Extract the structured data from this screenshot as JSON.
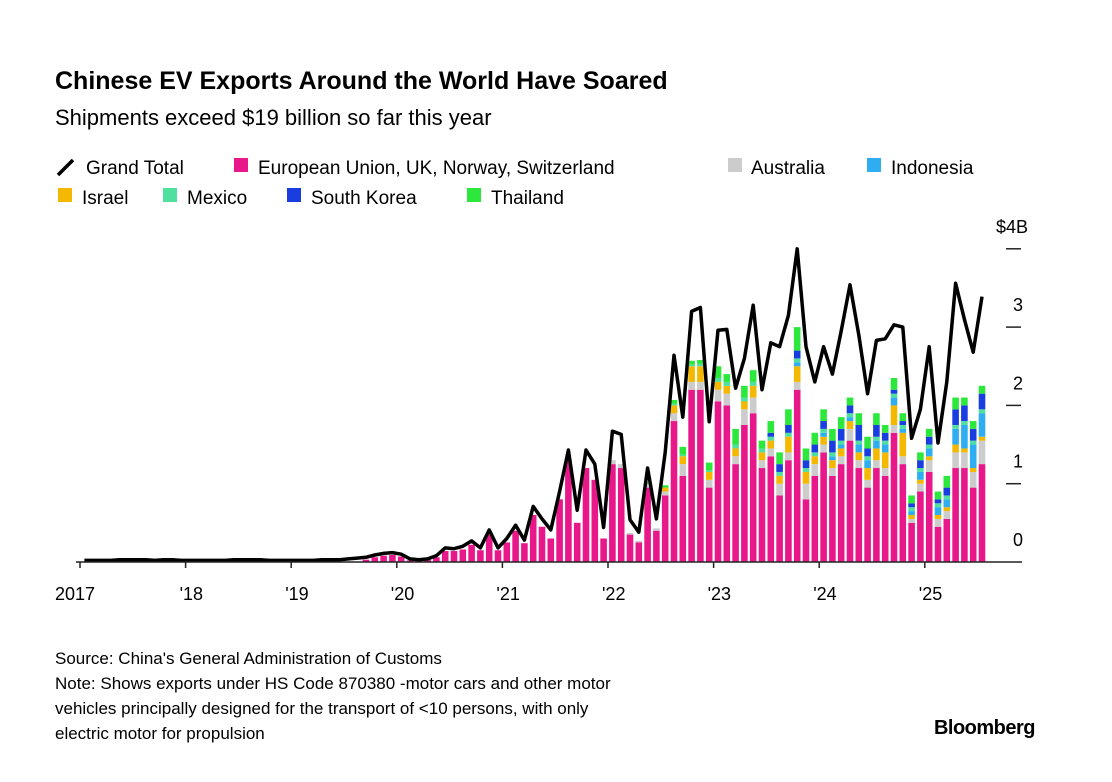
{
  "chart_data": {
    "type": "bar",
    "title": "Chinese EV Exports Around the World Have Soared",
    "subtitle": "Shipments exceed $19 billion so far this year",
    "ylabel": "$ billions",
    "ylim": [
      0,
      4
    ],
    "y_ticks": [
      "0",
      "1",
      "2",
      "3",
      "$4B"
    ],
    "x_ticks": [
      "2017",
      "'18",
      "'19",
      "'20",
      "'21",
      "'22",
      "'23",
      "'24",
      "'25"
    ],
    "x_tick_labels_positions_year": [
      2017,
      2018,
      2019,
      2020,
      2021,
      2022,
      2023,
      2024,
      2025
    ],
    "x_start": "2017-01",
    "frequency": "monthly",
    "legend": [
      "Grand Total",
      "European Union, UK, Norway, Switzerland",
      "Australia",
      "Indonesia",
      "Israel",
      "Mexico",
      "South Korea",
      "Thailand"
    ],
    "legend_placement": "top",
    "grand_total": [
      0.02,
      0.02,
      0.02,
      0.02,
      0.03,
      0.03,
      0.03,
      0.03,
      0.02,
      0.03,
      0.03,
      0.02,
      0.02,
      0.02,
      0.02,
      0.02,
      0.02,
      0.03,
      0.03,
      0.03,
      0.03,
      0.02,
      0.02,
      0.02,
      0.02,
      0.02,
      0.02,
      0.03,
      0.03,
      0.03,
      0.04,
      0.05,
      0.06,
      0.09,
      0.11,
      0.12,
      0.1,
      0.04,
      0.03,
      0.04,
      0.08,
      0.18,
      0.17,
      0.2,
      0.27,
      0.18,
      0.41,
      0.18,
      0.3,
      0.47,
      0.28,
      0.71,
      0.55,
      0.41,
      0.9,
      1.43,
      0.66,
      1.43,
      1.25,
      0.44,
      1.67,
      1.63,
      0.54,
      0.38,
      1.2,
      0.55,
      1.4,
      2.64,
      1.85,
      3.2,
      3.25,
      1.79,
      2.96,
      2.97,
      2.22,
      2.6,
      3.28,
      2.2,
      2.8,
      2.75,
      3.15,
      4.0,
      2.75,
      2.3,
      2.75,
      2.4,
      2.95,
      3.54,
      2.9,
      2.15,
      2.83,
      2.85,
      3.03,
      3.0,
      1.58,
      1.95,
      2.75,
      1.52,
      2.3,
      3.56,
      3.1,
      2.68,
      3.39
    ],
    "stack_start": "2017-01",
    "series": [
      {
        "name": "European Union, UK, Norway, Switzerland",
        "color": "#e8188a",
        "offset_months": 0,
        "values": [
          0,
          0,
          0,
          0,
          0,
          0,
          0,
          0,
          0,
          0,
          0,
          0,
          0,
          0,
          0,
          0,
          0,
          0,
          0,
          0,
          0,
          0,
          0,
          0,
          0,
          0,
          0,
          0,
          0,
          0,
          0,
          0,
          0.03,
          0.06,
          0.08,
          0.09,
          0.07,
          0.02,
          0.02,
          0.03,
          0.06,
          0.14,
          0.14,
          0.16,
          0.22,
          0.15,
          0.35,
          0.15,
          0.25,
          0.4,
          0.24,
          0.6,
          0.45,
          0.3,
          0.8,
          1.3,
          0.5,
          1.2,
          1.05,
          0.3,
          1.25,
          1.2,
          0.35,
          0.25,
          0.95,
          0.4,
          0.85,
          1.8,
          1.1,
          2.2,
          2.2,
          0.95,
          2.05,
          2.0,
          1.25,
          1.75,
          1.9,
          1.2,
          1.35,
          0.85,
          1.3,
          2.2,
          0.8,
          1.1,
          1.4,
          1.1,
          1.25,
          1.55,
          1.2,
          0.95,
          1.2,
          1.1,
          1.65,
          1.25,
          0.5,
          0.9,
          1.15,
          0.45,
          0.55,
          1.2,
          1.2,
          0.95,
          1.25
        ]
      },
      {
        "name": "Australia",
        "color": "#cccccc",
        "offset_months": 60,
        "values": [
          0.05,
          0.05,
          0.02,
          0.02,
          0.05,
          0.03,
          0.05,
          0.1,
          0.15,
          0.1,
          0.1,
          0.1,
          0.15,
          0.15,
          0.1,
          0.2,
          0.2,
          0.1,
          0.1,
          0.15,
          0.1,
          0.1,
          0.2,
          0.15,
          0.1,
          0.1,
          0.1,
          0.15,
          0.1,
          0.1,
          0.1,
          0.1,
          0.1,
          0.1,
          0.05,
          0.1,
          0.15,
          0.1,
          0.1,
          0.2,
          0.2,
          0.2,
          0.3
        ]
      },
      {
        "name": "Israel",
        "color": "#f5b800",
        "offset_months": 60,
        "values": [
          0,
          0,
          0,
          0,
          0,
          0,
          0.05,
          0.1,
          0.1,
          0.2,
          0.2,
          0.1,
          0.1,
          0.1,
          0.1,
          0.1,
          0.15,
          0.1,
          0.1,
          0.1,
          0.2,
          0.2,
          0.15,
          0.1,
          0.1,
          0.1,
          0.1,
          0.1,
          0.1,
          0.15,
          0.15,
          0.2,
          0.25,
          0.3,
          0.05,
          0.05,
          0.05,
          0.05,
          0.05,
          0.1,
          0.05,
          0.05,
          0.05
        ]
      },
      {
        "name": "Indonesia",
        "color": "#2eaef0",
        "offset_months": 60,
        "values": [
          0,
          0,
          0,
          0,
          0,
          0,
          0,
          0,
          0,
          0,
          0,
          0,
          0,
          0,
          0,
          0,
          0,
          0,
          0,
          0,
          0,
          0.05,
          0,
          0,
          0.05,
          0.05,
          0.05,
          0.05,
          0.1,
          0.1,
          0.1,
          0.1,
          0.1,
          0.05,
          0.05,
          0.1,
          0.1,
          0.1,
          0.1,
          0.2,
          0.3,
          0.3,
          0.3
        ]
      },
      {
        "name": "Mexico",
        "color": "#4fe0a0",
        "offset_months": 60,
        "values": [
          0,
          0,
          0,
          0,
          0,
          0,
          0,
          0.02,
          0.02,
          0.02,
          0.03,
          0.02,
          0.05,
          0.05,
          0.05,
          0.05,
          0.05,
          0.05,
          0.05,
          0.05,
          0.05,
          0.05,
          0.05,
          0.05,
          0.05,
          0.05,
          0.05,
          0.05,
          0.05,
          0.05,
          0.05,
          0.05,
          0.05,
          0.05,
          0.05,
          0.05,
          0.05,
          0.05,
          0.05,
          0.05,
          0.05,
          0.05,
          0.05
        ]
      },
      {
        "name": "South Korea",
        "color": "#1a3de0",
        "offset_months": 60,
        "values": [
          0,
          0,
          0,
          0,
          0,
          0,
          0,
          0,
          0,
          0,
          0,
          0,
          0,
          0,
          0,
          0,
          0,
          0,
          0.05,
          0.1,
          0.1,
          0.1,
          0.1,
          0.1,
          0.1,
          0.15,
          0.15,
          0.1,
          0.2,
          0.1,
          0.15,
          0.1,
          0.05,
          0.05,
          0.05,
          0.1,
          0.1,
          0.05,
          0.1,
          0.2,
          0.2,
          0.15,
          0.2
        ]
      },
      {
        "name": "Thailand",
        "color": "#2de83c",
        "offset_months": 60,
        "values": [
          0,
          0,
          0,
          0,
          0.02,
          0,
          0.03,
          0.05,
          0.1,
          0.05,
          0.05,
          0.1,
          0.15,
          0.1,
          0.2,
          0.15,
          0.15,
          0.1,
          0.15,
          0.15,
          0.2,
          0.3,
          0.15,
          0.15,
          0.15,
          0.15,
          0.15,
          0.1,
          0.15,
          0.15,
          0.15,
          0.1,
          0.15,
          0.1,
          0.1,
          0.1,
          0.1,
          0.1,
          0.15,
          0.15,
          0.1,
          0.1,
          0.1
        ]
      }
    ],
    "grid": false
  },
  "legend_labels": [
    "Grand Total",
    "European Union, UK, Norway, Switzerland",
    "Australia",
    "Indonesia",
    "Israel",
    "Mexico",
    "South Korea",
    "Thailand"
  ],
  "footer": {
    "source": "Source: China's General Administration of Customs",
    "note_lines": [
      "Note: Shows exports under HS Code 870380 -motor cars and other motor",
      "vehicles principally designed for the transport of <10 persons, with only",
      "electric motor for propulsion"
    ],
    "brand": "Bloomberg"
  }
}
